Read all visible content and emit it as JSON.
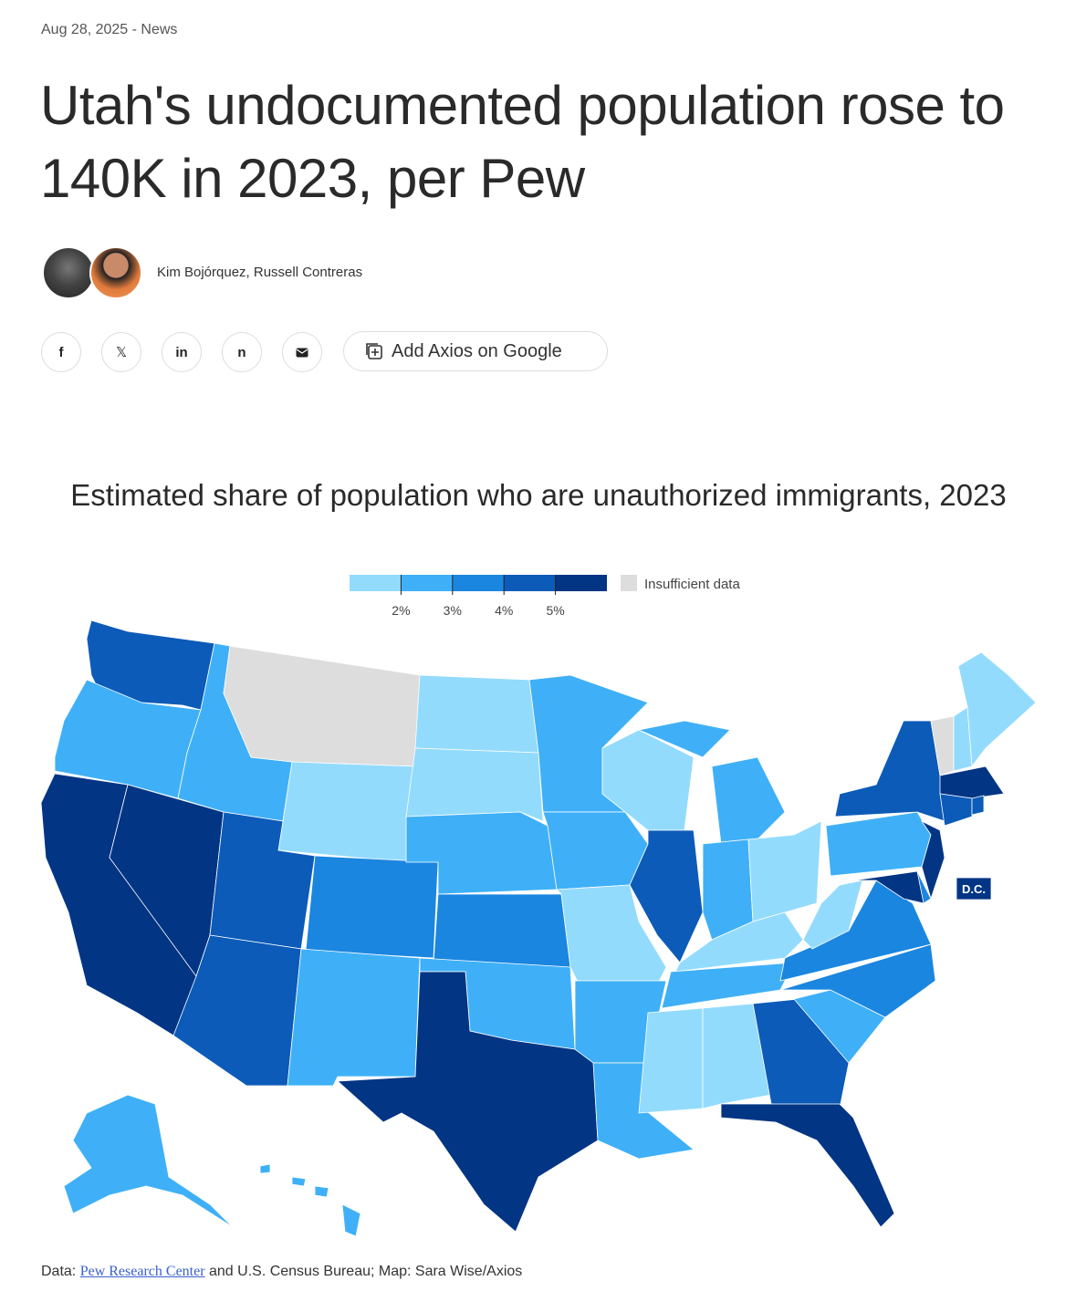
{
  "article": {
    "dateline": "Aug 28, 2025 - News",
    "title": "Utah's undocumented population rose to 140K in 2023, per Pew",
    "authors": "Kim Bojórquez, Russell Contreras",
    "share_buttons": [
      "f",
      "𝕏",
      "in",
      "n"
    ],
    "google_button": "Add Axios on Google"
  },
  "chart_data": {
    "type": "choropleth",
    "title": "Estimated share of population who are unauthorized immigrants, 2023",
    "values": [
      4.5,
      2.5,
      5.5,
      5.5,
      2.5,
      null,
      1.5,
      4.5,
      4.5,
      3.5,
      2.5,
      1.5,
      1.5,
      2.5,
      3.5,
      2.5,
      5.5,
      2.5,
      2.5,
      1.5,
      2.5,
      2.5,
      1.5,
      4.5,
      2.5,
      2.5,
      1.5,
      1.5,
      2.5,
      1.5,
      1.5,
      4.5,
      5.5,
      2.5,
      3.5,
      3.5,
      1.5,
      2.5,
      4.5,
      null,
      1.5,
      1.5,
      5.5,
      4.5,
      4.5,
      5.5,
      3.5,
      5.5,
      5.5,
      2.5,
      2.5
    ],
    "scale": {
      "range": [
        1,
        6
      ],
      "ticks": [
        {
          "value": 2,
          "label": "2%"
        },
        {
          "value": 3,
          "label": "3%"
        },
        {
          "value": 4,
          "label": "4%"
        },
        {
          "value": 5,
          "label": "5%"
        }
      ],
      "colors": [
        "#93dbfd",
        "#3fb0f7",
        "#1a86e0",
        "#0c5bb8",
        "#033585"
      ]
    },
    "no_data": {
      "label": "Insufficient data",
      "color": "#dddddd"
    },
    "annotation": "D.C."
  },
  "footer": {
    "prefix": "Data:",
    "link": "Pew Research Center",
    "rest": "and U.S. Census Bureau; Map: Sara Wise/Axios"
  }
}
